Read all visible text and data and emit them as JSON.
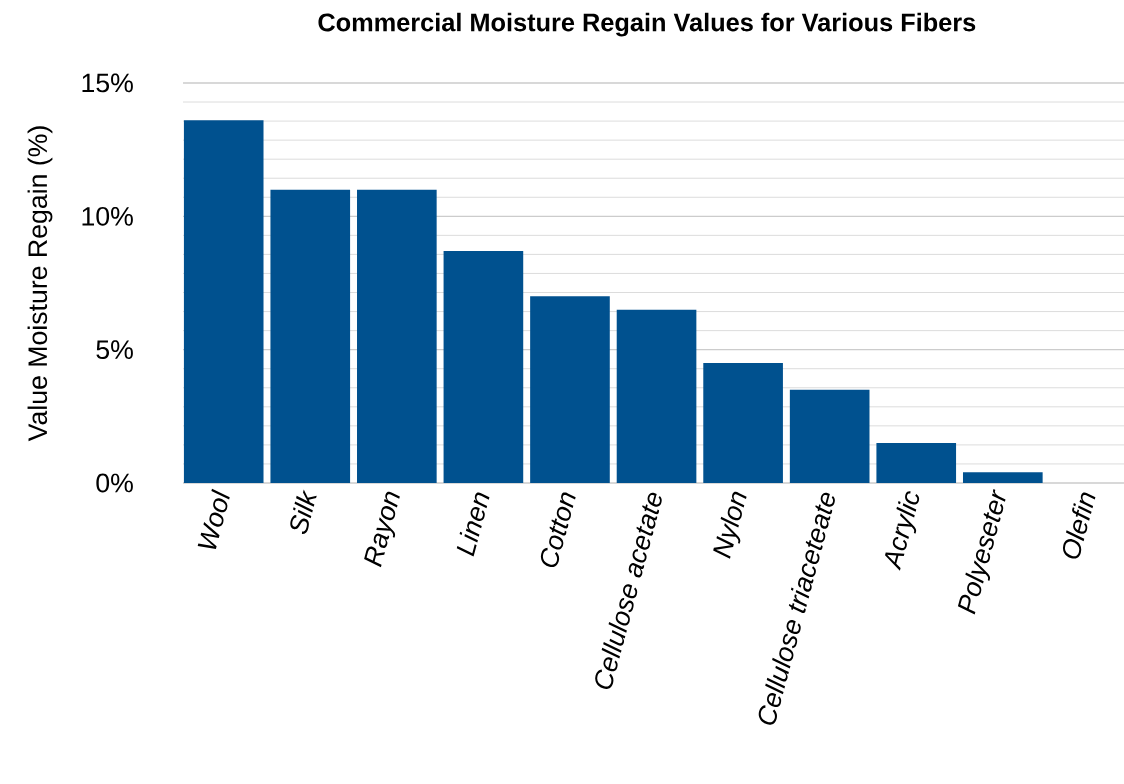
{
  "chart_data": {
    "type": "bar",
    "title": "Commercial Moisture Regain Values for Various Fibers",
    "ylabel": "Value Moisture Regain (%)",
    "categories": [
      "Wool",
      "Silk",
      "Rayon",
      "Linen",
      "Cotton",
      "Cellulose acetate",
      "Nylon",
      "Cellulose triaceteate",
      "Acrylic",
      "Polyeseter",
      "Olefin"
    ],
    "values": [
      13.6,
      11,
      11,
      8.7,
      7,
      6.5,
      4.5,
      3.5,
      1.5,
      0.4,
      0
    ],
    "color": "#00518f",
    "ylim": [
      0,
      15
    ],
    "yticks": [
      {
        "value": 0,
        "label": "0%"
      },
      {
        "value": 5,
        "label": "5%"
      },
      {
        "value": 10,
        "label": "10%"
      },
      {
        "value": 15,
        "label": "15%"
      }
    ],
    "grid": "y"
  }
}
